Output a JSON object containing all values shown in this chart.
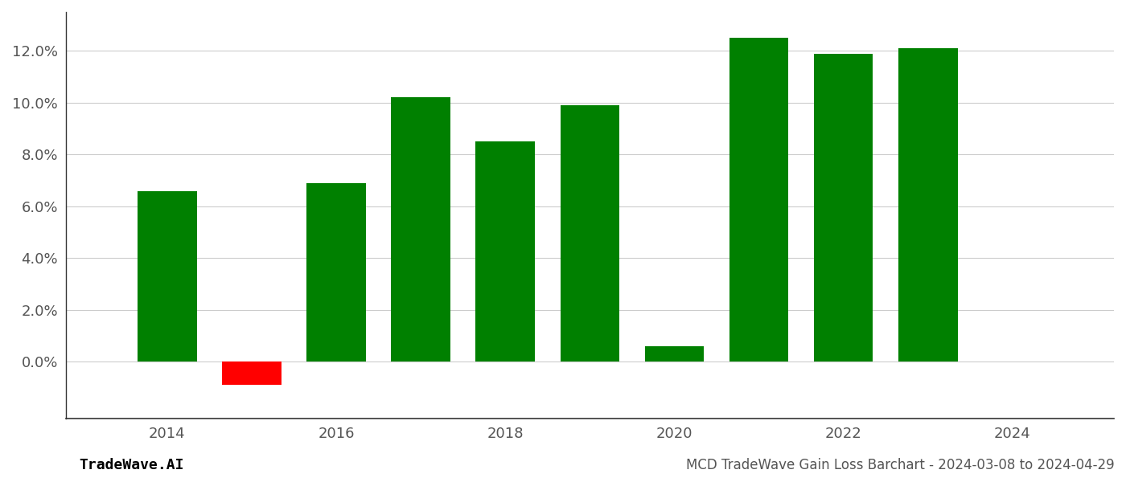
{
  "years": [
    2014,
    2015,
    2016,
    2017,
    2018,
    2019,
    2020,
    2021,
    2022,
    2023
  ],
  "values": [
    0.066,
    -0.009,
    0.069,
    0.102,
    0.085,
    0.099,
    0.006,
    0.125,
    0.119,
    0.121
  ],
  "colors": [
    "#008000",
    "#ff0000",
    "#008000",
    "#008000",
    "#008000",
    "#008000",
    "#008000",
    "#008000",
    "#008000",
    "#008000"
  ],
  "title": "MCD TradeWave Gain Loss Barchart - 2024-03-08 to 2024-04-29",
  "watermark": "TradeWave.AI",
  "ylim_min": -0.022,
  "ylim_max": 0.135,
  "ytick_min": 0.0,
  "ytick_max": 0.121,
  "ytick_step": 0.02,
  "bar_width": 0.7,
  "background_color": "#ffffff",
  "grid_color": "#cccccc",
  "axis_color": "#555555",
  "spine_color": "#333333",
  "title_fontsize": 12,
  "watermark_fontsize": 13,
  "tick_fontsize": 13,
  "xlim_min": 2012.8,
  "xlim_max": 2025.2,
  "xticks": [
    2014,
    2016,
    2018,
    2020,
    2022,
    2024
  ]
}
